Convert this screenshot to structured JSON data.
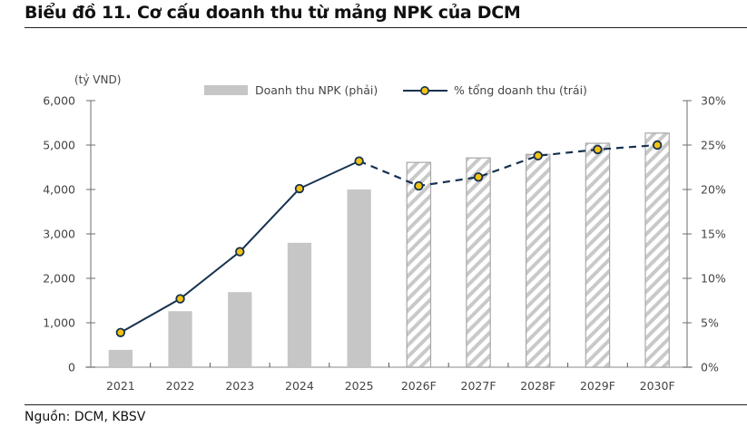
{
  "title": "Biểu đồ 11. Cơ cấu doanh thu từ mảng NPK của DCM",
  "source": "Nguồn: DCM, KBSV",
  "colors": {
    "bar_actual": "#c6c6c6",
    "bar_forecast_stroke": "#a8a8a8",
    "line": "#17324f",
    "marker_fill": "#f2c311"
  },
  "chart_data": {
    "type": "bar+line",
    "title": "Biểu đồ 11. Cơ cấu doanh thu từ mảng NPK của DCM",
    "left_axis_unit": "(tỷ VND)",
    "categories": [
      "2021",
      "2022",
      "2023",
      "2024",
      "2025",
      "2026F",
      "2027F",
      "2028F",
      "2029F",
      "2030F"
    ],
    "forecast_from_index": 5,
    "left_axis": {
      "min": 0,
      "max": 6000,
      "ticks": [
        "0",
        "1,000",
        "2,000",
        "3,000",
        "4,000",
        "5,000",
        "6,000"
      ]
    },
    "right_axis": {
      "min": 0,
      "max": 30,
      "ticks": [
        "0%",
        "5%",
        "10%",
        "15%",
        "20%",
        "25%",
        "30%"
      ]
    },
    "series": [
      {
        "name": "Doanh thu NPK (phải)",
        "type": "bar",
        "axis": "left",
        "values": [
          390,
          1260,
          1690,
          2800,
          4000,
          4610,
          4710,
          4790,
          5040,
          5270
        ]
      },
      {
        "name": "% tổng doanh thu (trái)",
        "type": "line",
        "axis": "right",
        "values": [
          3.9,
          7.7,
          13.0,
          20.1,
          23.2,
          20.4,
          21.4,
          23.8,
          24.5,
          25.0
        ]
      }
    ],
    "legend_position": "top-center",
    "grid": false
  }
}
